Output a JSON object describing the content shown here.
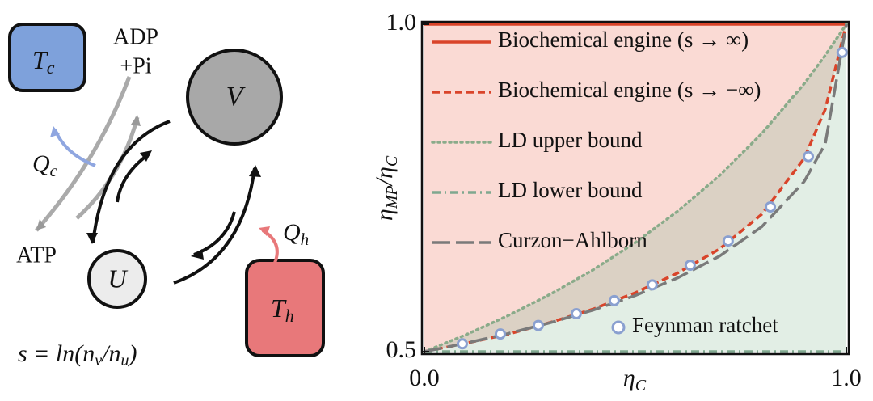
{
  "diagram": {
    "tc": [
      "T",
      "c"
    ],
    "adp": [
      "ADP",
      "+Pi"
    ],
    "v": "V",
    "qc": [
      "Q",
      "c"
    ],
    "atp": "ATP",
    "u": "U",
    "qh": [
      "Q",
      "h"
    ],
    "th": [
      "T",
      "h"
    ],
    "formula": [
      "s = ln(n",
      "v",
      "/n",
      "u",
      ")"
    ]
  },
  "chart_data": {
    "type": "line",
    "xlabel": [
      "η",
      "C"
    ],
    "ylabel": [
      "η",
      "MP",
      "/η",
      "C"
    ],
    "xlim": [
      0,
      1
    ],
    "ylim": [
      0.5,
      1
    ],
    "xticks": [
      {
        "value": 0,
        "label": "0.0"
      },
      {
        "value": 1,
        "label": "1.0"
      }
    ],
    "yticks": [
      0.5,
      {
        "value": 1,
        "label": "1.0"
      }
    ],
    "x": [
      0,
      0.1,
      0.2,
      0.3,
      0.4,
      0.5,
      0.6,
      0.7,
      0.8,
      0.9,
      0.95,
      1
    ],
    "series": [
      {
        "name": "Biochemical engine (s → ∞)",
        "color": "#d9442a",
        "dash": "solid",
        "values": [
          1,
          1,
          1,
          1,
          1,
          1,
          1,
          1,
          1,
          1,
          1,
          1
        ]
      },
      {
        "name": "Biochemical engine (s → −∞)",
        "color": "#d9442a",
        "dash": "dashed",
        "values": [
          0.5,
          0.513,
          0.527,
          0.545,
          0.565,
          0.59,
          0.62,
          0.657,
          0.71,
          0.795,
          0.87,
          1
        ]
      },
      {
        "name": "LD upper bound",
        "color": "#8aab8a",
        "dash": "dotted",
        "values": [
          0.5,
          0.5263,
          0.5556,
          0.5882,
          0.625,
          0.6667,
          0.7143,
          0.7692,
          0.8333,
          0.9091,
          0.9524,
          1
        ]
      },
      {
        "name": "LD lower bound",
        "color": "#7fa88f",
        "dash": "dashdot",
        "values": [
          0.5,
          0.5,
          0.5,
          0.5,
          0.5,
          0.5,
          0.5,
          0.5,
          0.5,
          0.5,
          0.5,
          0.5
        ]
      },
      {
        "name": "Curzon−Ahlborn",
        "color": "#7a7a7a",
        "dash": "longdash",
        "values": [
          0.5,
          0.5132,
          0.5279,
          0.5445,
          0.5635,
          0.5858,
          0.6126,
          0.6461,
          0.691,
          0.7597,
          0.8173,
          1
        ]
      }
    ],
    "points": {
      "name": "Feynman ratchet",
      "color": "#8aa0d0",
      "x": [
        0.09,
        0.18,
        0.27,
        0.36,
        0.45,
        0.54,
        0.63,
        0.72,
        0.82,
        0.91,
        0.99
      ],
      "values": [
        0.512,
        0.527,
        0.54,
        0.558,
        0.578,
        0.602,
        0.632,
        0.669,
        0.721,
        0.798,
        0.957
      ]
    }
  }
}
